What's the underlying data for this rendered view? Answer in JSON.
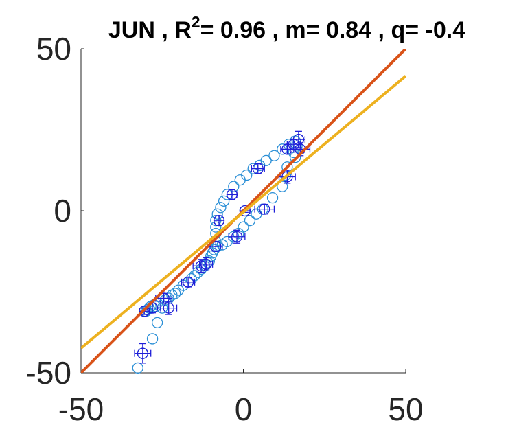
{
  "chart_data": {
    "type": "scatter",
    "title": {
      "prefix": "JUN , R",
      "superscript": "2",
      "suffix": "= 0.96 , m= 0.84 , q= -0.4"
    },
    "xlabel": "",
    "ylabel": "",
    "xlim": [
      -50,
      50
    ],
    "ylim": [
      -50,
      50
    ],
    "xticks": [
      "-50",
      "0",
      "50"
    ],
    "yticks": [
      "-50",
      "0",
      "50"
    ],
    "grid": false,
    "colors": {
      "points": "#2a8fd6",
      "error_bars": "#1f1fd8",
      "identity_line": "#d95319",
      "fit_line": "#edb120",
      "axis": "#262626"
    },
    "points": [
      [
        -32.5,
        -48.5
      ],
      [
        -31,
        -44
      ],
      [
        -28,
        -39.5
      ],
      [
        -26.5,
        -34.5
      ],
      [
        -25,
        -30
      ],
      [
        -27,
        -29.5
      ],
      [
        -28.5,
        -29.5
      ],
      [
        -29.5,
        -30.5
      ],
      [
        -30,
        -31
      ],
      [
        -30.5,
        -31
      ],
      [
        -29,
        -30
      ],
      [
        -27.5,
        -29
      ],
      [
        -26.5,
        -28.5
      ],
      [
        -24,
        -27.5
      ],
      [
        -23,
        -27
      ],
      [
        -22,
        -26
      ],
      [
        -21,
        -25.5
      ],
      [
        -20,
        -24.5
      ],
      [
        -18.5,
        -23
      ],
      [
        -17,
        -22
      ],
      [
        -16,
        -21
      ],
      [
        -15,
        -20
      ],
      [
        -14,
        -19
      ],
      [
        -13,
        -18
      ],
      [
        -12,
        -17
      ],
      [
        -11.5,
        -16.5
      ],
      [
        -11,
        -16
      ],
      [
        -10.5,
        -15.5
      ],
      [
        -10,
        -14
      ],
      [
        -9.5,
        -13
      ],
      [
        -9,
        -12
      ],
      [
        -8.5,
        -11
      ],
      [
        -8.5,
        -9.5
      ],
      [
        -8.5,
        -7
      ],
      [
        -8.5,
        -5
      ],
      [
        -8.5,
        -3
      ],
      [
        -8,
        -1
      ],
      [
        -7,
        1
      ],
      [
        -6,
        3
      ],
      [
        -5,
        5
      ],
      [
        -3,
        7.5
      ],
      [
        -1,
        9.5
      ],
      [
        1,
        11
      ],
      [
        3,
        13
      ],
      [
        5,
        14
      ],
      [
        7,
        15.5
      ],
      [
        9.5,
        17
      ],
      [
        12,
        19
      ],
      [
        14,
        20.5
      ],
      [
        16,
        21.5
      ],
      [
        17,
        22
      ],
      [
        16.5,
        20
      ],
      [
        15.5,
        18
      ],
      [
        16,
        16.5
      ],
      [
        13.5,
        13.5
      ],
      [
        13,
        11
      ],
      [
        12,
        7.5
      ],
      [
        9,
        4
      ],
      [
        6,
        0.5
      ],
      [
        4,
        -1
      ],
      [
        2,
        -3
      ],
      [
        0,
        -5
      ],
      [
        -1.5,
        -7
      ],
      [
        -3,
        -8
      ],
      [
        -5,
        -9.5
      ],
      [
        -6.5,
        -10.5
      ],
      [
        -8,
        -11
      ],
      [
        0.5,
        0
      ]
    ],
    "error_points": [
      {
        "x": -31,
        "y": -44,
        "xerr": 2.5,
        "yerr": 3
      },
      {
        "x": -30.5,
        "y": -31,
        "xerr": 1.5,
        "yerr": 1
      },
      {
        "x": -28,
        "y": -30,
        "xerr": 2,
        "yerr": 1.5
      },
      {
        "x": -24.5,
        "y": -27,
        "xerr": 2.5,
        "yerr": 1.5
      },
      {
        "x": -23,
        "y": -30,
        "xerr": 2.5,
        "yerr": 2
      },
      {
        "x": -17,
        "y": -22,
        "xerr": 2,
        "yerr": 1.5
      },
      {
        "x": -13,
        "y": -17,
        "xerr": 2.5,
        "yerr": 2
      },
      {
        "x": -11.5,
        "y": -16.5,
        "xerr": 2,
        "yerr": 2
      },
      {
        "x": -8.5,
        "y": -11,
        "xerr": 2,
        "yerr": 1.5
      },
      {
        "x": -7.5,
        "y": -3,
        "xerr": 1.5,
        "yerr": 1.5
      },
      {
        "x": -3.5,
        "y": 5,
        "xerr": 1.5,
        "yerr": 1.5
      },
      {
        "x": -2,
        "y": -8,
        "xerr": 2.5,
        "yerr": 2
      },
      {
        "x": 0.5,
        "y": 0,
        "xerr": 1.5,
        "yerr": 0.5
      },
      {
        "x": 4.5,
        "y": 13,
        "xerr": 2,
        "yerr": 1.5
      },
      {
        "x": 6.5,
        "y": 0.5,
        "xerr": 3,
        "yerr": 1.5
      },
      {
        "x": 13.5,
        "y": 10.5,
        "xerr": 2.5,
        "yerr": 2
      },
      {
        "x": 13.5,
        "y": 19,
        "xerr": 2,
        "yerr": 1.5
      },
      {
        "x": 15.5,
        "y": 20.5,
        "xerr": 2,
        "yerr": 1.5
      },
      {
        "x": 17,
        "y": 22,
        "xerr": 2,
        "yerr": 2.5
      },
      {
        "x": 17.5,
        "y": 19,
        "xerr": 3,
        "yerr": 2
      }
    ],
    "identity_line": {
      "slope": 1,
      "intercept": 0
    },
    "fit_line": {
      "slope": 0.84,
      "intercept": -0.4
    }
  }
}
